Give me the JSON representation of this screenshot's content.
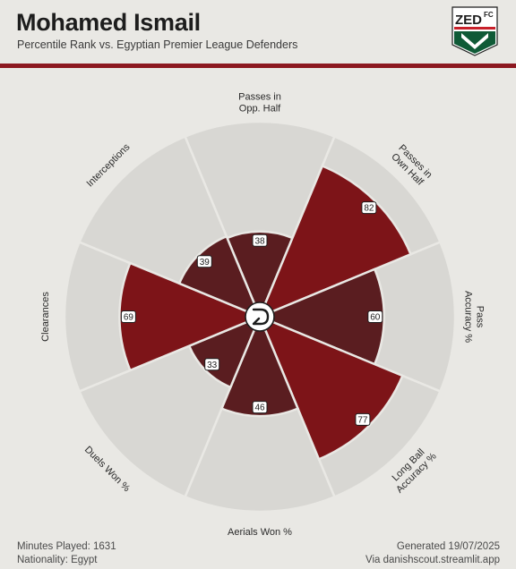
{
  "header": {
    "title": "Mohamed Ismail",
    "subtitle": "Percentile Rank vs. Egyptian Premier League Defenders"
  },
  "logo": {
    "text_top": "ZED",
    "text_fc": "FC",
    "colors": {
      "green": "#0f5a36",
      "red": "#c8202a",
      "dark": "#1d1d1d"
    }
  },
  "chart_data": {
    "type": "radar-bar",
    "scale": [
      0,
      100
    ],
    "center_icon": "logo-d-icon",
    "categories": [
      {
        "label": [
          "Passes in",
          "Opp. Half"
        ],
        "value": 38,
        "color": "#5a1d20"
      },
      {
        "label": [
          "Passes in",
          "Own Half"
        ],
        "value": 82,
        "color": "#7d1418"
      },
      {
        "label": [
          "Pass",
          "Accuracy %"
        ],
        "value": 60,
        "color": "#5a1d20"
      },
      {
        "label": [
          "Long Ball",
          "Accuracy %"
        ],
        "value": 77,
        "color": "#7d1418"
      },
      {
        "label": [
          "Aerials Won %"
        ],
        "value": 46,
        "color": "#5a1d20"
      },
      {
        "label": [
          "Duels Won %"
        ],
        "value": 33,
        "color": "#5a1d20"
      },
      {
        "label": [
          "Clearances"
        ],
        "value": 69,
        "color": "#7d1418"
      },
      {
        "label": [
          "Interceptions"
        ],
        "value": 39,
        "color": "#5a1d20"
      }
    ],
    "background_color": "#d8d7d3"
  },
  "footer": {
    "minutes": "Minutes Played: 1631",
    "nationality": "Nationality: Egypt",
    "generated": "Generated 19/07/2025",
    "via": "Via danishscout.streamlit.app"
  }
}
